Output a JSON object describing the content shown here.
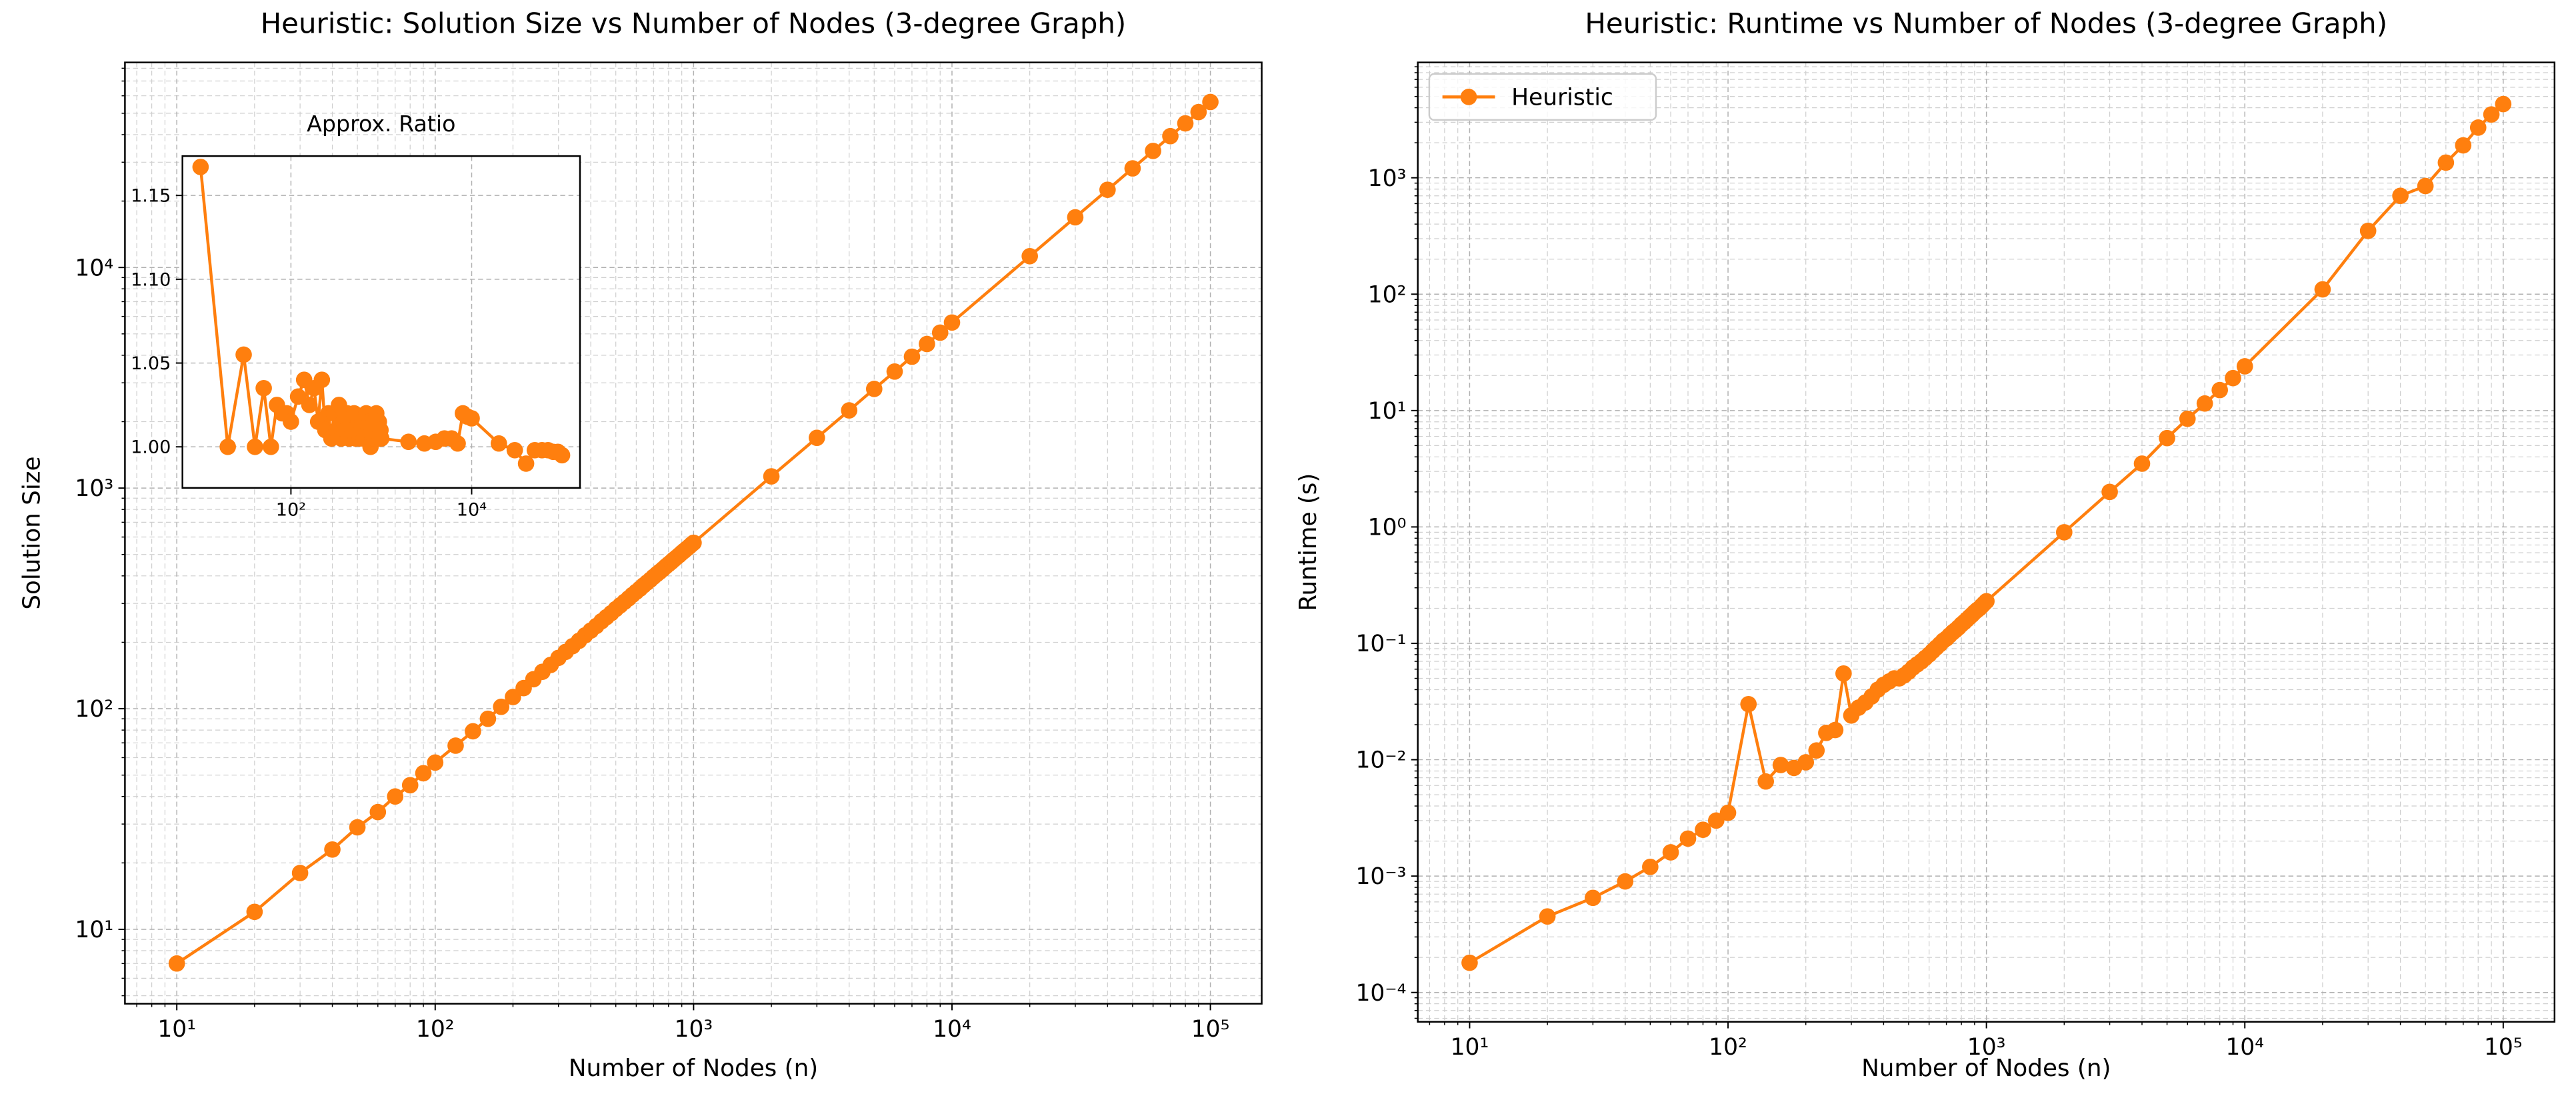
{
  "chart_data": [
    {
      "type": "line",
      "title": "Heuristic: Solution Size vs Number of Nodes (3-degree Graph)",
      "x_label": "Number of Nodes (n)",
      "y_label": "Solution Size",
      "xscale": "log",
      "yscale": "log",
      "grid": "both",
      "xlim": [
        6.3,
        158000
      ],
      "ylim": [
        4.6,
        85000
      ],
      "xticks": [
        {
          "value": 10,
          "label": "10¹"
        },
        {
          "value": 100,
          "label": "10²"
        },
        {
          "value": 1000,
          "label": "10³"
        },
        {
          "value": 10000,
          "label": "10⁴"
        },
        {
          "value": 100000,
          "label": "10⁵"
        }
      ],
      "yticks": [
        {
          "value": 10,
          "label": "10¹"
        },
        {
          "value": 100,
          "label": "10²"
        },
        {
          "value": 1000,
          "label": "10³"
        },
        {
          "value": 10000,
          "label": "10⁴"
        }
      ],
      "x": [
        10,
        20,
        30,
        40,
        50,
        60,
        70,
        80,
        90,
        100,
        120,
        140,
        160,
        180,
        200,
        220,
        240,
        260,
        280,
        300,
        320,
        340,
        360,
        380,
        400,
        420,
        440,
        460,
        480,
        500,
        520,
        540,
        560,
        580,
        600,
        620,
        640,
        660,
        680,
        700,
        720,
        740,
        760,
        780,
        800,
        820,
        840,
        860,
        880,
        900,
        920,
        940,
        960,
        980,
        1000,
        2000,
        3000,
        4000,
        5000,
        6000,
        7000,
        8000,
        9000,
        10000,
        20000,
        30000,
        40000,
        50000,
        60000,
        70000,
        80000,
        90000,
        100000
      ],
      "series": [
        {
          "color": "#ff7f0e",
          "values": [
            7,
            12,
            18,
            23,
            29,
            34,
            40,
            45,
            51,
            57,
            68,
            79,
            90,
            102,
            113,
            124,
            136,
            147,
            158,
            170,
            181,
            192,
            203,
            215,
            226,
            237,
            249,
            260,
            271,
            283,
            294,
            305,
            316,
            328,
            339,
            350,
            362,
            373,
            384,
            396,
            407,
            418,
            429,
            441,
            452,
            463,
            475,
            486,
            497,
            509,
            520,
            531,
            542,
            554,
            565,
            1130,
            1690,
            2250,
            2815,
            3375,
            3940,
            4500,
            5065,
            5630,
            11250,
            16880,
            22500,
            28130,
            33750,
            39380,
            45000,
            50630,
            56250
          ]
        }
      ]
    },
    {
      "type": "line",
      "title": "Approx. Ratio",
      "xscale": "log",
      "grid": true,
      "xlim": [
        6.3,
        158000
      ],
      "ylim": [
        0.9755,
        1.1735
      ],
      "xticks": [
        {
          "value": 100,
          "label": "10²"
        },
        {
          "value": 10000,
          "label": "10⁴"
        }
      ],
      "yticks": [
        {
          "value": 1,
          "label": "1.00"
        },
        1.05,
        {
          "value": 1.1,
          "label": "1.10"
        },
        1.15
      ],
      "x": [
        10,
        20,
        30,
        40,
        50,
        60,
        70,
        80,
        90,
        100,
        120,
        140,
        160,
        180,
        200,
        220,
        240,
        260,
        280,
        300,
        320,
        340,
        360,
        380,
        400,
        420,
        440,
        460,
        480,
        500,
        520,
        540,
        560,
        580,
        600,
        620,
        640,
        660,
        680,
        700,
        720,
        740,
        760,
        780,
        800,
        820,
        840,
        860,
        880,
        900,
        920,
        940,
        960,
        980,
        1000,
        2000,
        3000,
        4000,
        5000,
        6000,
        7000,
        8000,
        9000,
        10000,
        20000,
        30000,
        40000,
        50000,
        60000,
        70000,
        80000,
        90000,
        100000
      ],
      "series": [
        {
          "color": "#ff7f0e",
          "values": [
            1.167,
            1.0,
            1.055,
            1.0,
            1.035,
            1.0,
            1.025,
            1.02,
            1.02,
            1.015,
            1.03,
            1.04,
            1.025,
            1.035,
            1.015,
            1.04,
            1.01,
            1.02,
            1.005,
            1.02,
            1.01,
            1.025,
            1.005,
            1.015,
            1.01,
            1.02,
            1.005,
            1.015,
            1.01,
            1.02,
            1.005,
            1.01,
            1.015,
            1.005,
            1.01,
            1.015,
            1.005,
            1.01,
            1.02,
            1.005,
            1.01,
            1.015,
            1.0,
            1.01,
            1.005,
            1.015,
            1.005,
            1.01,
            1.02,
            1.005,
            1.01,
            1.015,
            1.005,
            1.01,
            1.005,
            1.003,
            1.002,
            1.003,
            1.005,
            1.005,
            1.002,
            1.02,
            1.018,
            1.017,
            1.002,
            0.998,
            0.99,
            0.998,
            0.998,
            0.998,
            0.997,
            0.997,
            0.995
          ]
        }
      ]
    },
    {
      "type": "line",
      "title": "Heuristic: Runtime vs Number of Nodes (3-degree Graph)",
      "x_label": "Number of Nodes (n)",
      "y_label": "Runtime (s)",
      "xscale": "log",
      "yscale": "log",
      "grid": "both",
      "legend": "upper left",
      "xlim": [
        6.3,
        158000
      ],
      "ylim": [
        5.6e-05,
        9800
      ],
      "xticks": [
        {
          "value": 10,
          "label": "10¹"
        },
        {
          "value": 100,
          "label": "10²"
        },
        {
          "value": 1000,
          "label": "10³"
        },
        {
          "value": 10000,
          "label": "10⁴"
        },
        {
          "value": 100000,
          "label": "10⁵"
        }
      ],
      "yticks": [
        {
          "value": 0.0001,
          "label": "10⁻⁴"
        },
        {
          "value": 0.001,
          "label": "10⁻³"
        },
        {
          "value": 0.01,
          "label": "10⁻²"
        },
        {
          "value": 0.1,
          "label": "10⁻¹"
        },
        {
          "value": 1,
          "label": "10⁰"
        },
        {
          "value": 10,
          "label": "10¹"
        },
        {
          "value": 100,
          "label": "10²"
        },
        {
          "value": 1000,
          "label": "10³"
        }
      ],
      "x": [
        10,
        20,
        30,
        40,
        50,
        60,
        70,
        80,
        90,
        100,
        120,
        140,
        160,
        180,
        200,
        220,
        240,
        260,
        280,
        300,
        320,
        340,
        360,
        380,
        400,
        420,
        440,
        460,
        480,
        500,
        520,
        540,
        560,
        580,
        600,
        620,
        640,
        660,
        680,
        700,
        720,
        740,
        760,
        780,
        800,
        820,
        840,
        860,
        880,
        900,
        920,
        940,
        960,
        980,
        1000,
        2000,
        3000,
        4000,
        5000,
        6000,
        7000,
        8000,
        9000,
        10000,
        20000,
        30000,
        40000,
        50000,
        60000,
        70000,
        80000,
        90000,
        100000
      ],
      "series": [
        {
          "name": "Heuristic",
          "color": "#ff7f0e",
          "values": [
            0.00018,
            0.00045,
            0.00065,
            0.0009,
            0.0012,
            0.0016,
            0.0021,
            0.0025,
            0.003,
            0.0035,
            0.03,
            0.0065,
            0.009,
            0.0085,
            0.0095,
            0.012,
            0.017,
            0.018,
            0.055,
            0.024,
            0.028,
            0.031,
            0.035,
            0.04,
            0.044,
            0.047,
            0.05,
            0.05,
            0.053,
            0.057,
            0.062,
            0.066,
            0.07,
            0.075,
            0.08,
            0.086,
            0.092,
            0.098,
            0.105,
            0.11,
            0.117,
            0.124,
            0.13,
            0.137,
            0.145,
            0.152,
            0.16,
            0.168,
            0.176,
            0.185,
            0.193,
            0.2,
            0.21,
            0.22,
            0.23,
            0.9,
            2,
            3.5,
            5.8,
            8.5,
            11.5,
            15,
            19,
            24,
            110,
            350,
            700,
            850,
            1350,
            1900,
            2700,
            3500,
            4300
          ]
        }
      ]
    }
  ]
}
